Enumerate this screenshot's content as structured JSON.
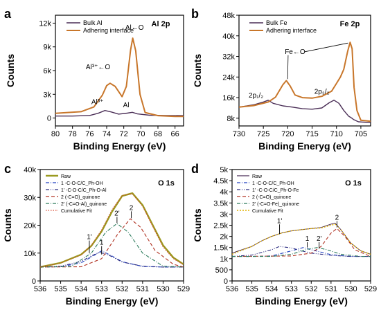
{
  "colors": {
    "bulk": "#4b2f57",
    "adhering": "#c8762a",
    "raw": "#4b2f57",
    "fit": "#e2b200",
    "c1": "#2040c0",
    "c1p": "#2c2c80",
    "c2": "#b03020",
    "c2p": "#2a7a5a",
    "cum": "#d8432a",
    "env": "#9a9a20"
  },
  "chart_data": [
    {
      "panel": "a",
      "type": "line",
      "title": "Al 2p",
      "xlabel": "Binding Energy (eV)",
      "ylabel": "Counts",
      "xlim": [
        80,
        65
      ],
      "ylim": [
        -1000,
        13000
      ],
      "xticks": [
        80,
        78,
        76,
        74,
        72,
        70,
        68,
        66
      ],
      "yticks": [
        0,
        3000,
        6000,
        9000,
        12000
      ],
      "ytick_labels": [
        "0",
        "3k",
        "6k",
        "9k",
        "12k"
      ],
      "legend": [
        "Bulk Al",
        "Adhering interface"
      ],
      "annotations": [
        "Al³⁺←O",
        "Al³⁺",
        "Al",
        "Al←O"
      ],
      "series": [
        {
          "name": "Bulk Al",
          "x": [
            80,
            78,
            76,
            75,
            74.2,
            73.5,
            72.6,
            71.6,
            71.0,
            70.4,
            69,
            67,
            65
          ],
          "y": [
            250,
            250,
            320,
            600,
            950,
            780,
            500,
            620,
            720,
            520,
            360,
            320,
            300
          ]
        },
        {
          "name": "Adhering interface",
          "x": [
            80,
            77,
            75.5,
            74.5,
            74.0,
            73.6,
            73.0,
            72.2,
            71.7,
            71.2,
            70.95,
            70.6,
            70.1,
            69.5,
            68,
            66,
            65
          ],
          "y": [
            600,
            800,
            1400,
            2900,
            4100,
            4400,
            4000,
            2700,
            4000,
            8600,
            10100,
            8500,
            3000,
            700,
            300,
            200,
            200
          ]
        }
      ]
    },
    {
      "panel": "b",
      "type": "line",
      "title": "Fe 2p",
      "xlabel": "Binding Eneryg (eV)",
      "ylabel": "Counts",
      "xlim": [
        730,
        703
      ],
      "ylim": [
        5000,
        48000
      ],
      "xticks": [
        730,
        725,
        720,
        715,
        710,
        705
      ],
      "yticks": [
        8000,
        16000,
        24000,
        32000,
        40000,
        48000
      ],
      "ytick_labels": [
        "8k",
        "16k",
        "24k",
        "32k",
        "40k",
        "48k"
      ],
      "legend": [
        "Bulk Fe",
        "Adhering interface"
      ],
      "annotations": [
        "Fe←O",
        "2p₁/₂",
        "2p₃/₂"
      ],
      "series": [
        {
          "name": "Bulk Fe",
          "x": [
            730,
            727,
            725,
            724,
            723,
            721,
            719,
            717,
            715,
            713,
            711.5,
            710.5,
            709.5,
            708.5,
            707.5,
            707.0,
            706.5,
            705.5,
            703
          ],
          "y": [
            12300,
            13200,
            14300,
            15000,
            13800,
            12800,
            12300,
            11700,
            11500,
            12000,
            14000,
            15000,
            13800,
            11000,
            8800,
            8200,
            7500,
            6600,
            6300
          ]
        },
        {
          "name": "Adhering interface",
          "x": [
            730,
            727,
            724,
            722.5,
            721,
            720.3,
            719.5,
            718.5,
            717,
            715,
            713,
            711,
            710,
            709.2,
            708.5,
            707.7,
            707.2,
            706.8,
            706.4,
            705.8,
            705.0,
            703
          ],
          "y": [
            12300,
            12900,
            14300,
            16200,
            21000,
            22600,
            20500,
            17000,
            16000,
            15800,
            16500,
            18500,
            21500,
            24000,
            27000,
            34000,
            37500,
            35000,
            20000,
            11000,
            7200,
            6800
          ]
        }
      ]
    },
    {
      "panel": "c",
      "type": "line",
      "title": "O 1s",
      "xlabel": "Binding Energy (eV)",
      "ylabel": "Counts",
      "xlim": [
        536,
        529
      ],
      "ylim": [
        0,
        40000
      ],
      "xticks": [
        536,
        535,
        534,
        533,
        532,
        531,
        530,
        529
      ],
      "yticks": [
        0,
        10000,
        20000,
        30000,
        40000
      ],
      "ytick_labels": [
        "0",
        "10k",
        "20k",
        "30k",
        "40k"
      ],
      "legend": [
        "Raw",
        "1 -C-O-C/C_Ph-OH",
        "1' -C-O-C/C_Ph-O-Al",
        "2 (-C=O)_quinone",
        "2' (-C=O-Al)_quinone",
        "Cumulative Fit"
      ],
      "annotations": [
        "1'",
        "1",
        "2'",
        "2"
      ],
      "series": [
        {
          "name": "Raw",
          "x": [
            536,
            535,
            534,
            533.5,
            533,
            532.5,
            532,
            531.5,
            531,
            530.5,
            530,
            529.5,
            529
          ],
          "y": [
            5000,
            6500,
            9500,
            12600,
            17800,
            24800,
            30500,
            31500,
            27200,
            20000,
            12800,
            8400,
            6000
          ]
        },
        {
          "name": "1 -C-O-C/C_Ph-OH",
          "x": [
            536,
            535,
            534,
            533.5,
            533,
            532.5,
            532,
            531,
            530,
            529
          ],
          "y": [
            5000,
            5100,
            6500,
            8600,
            10800,
            9000,
            6900,
            5200,
            5000,
            5000
          ]
        },
        {
          "name": "1' -C-O-C/C_Ph-O-Al",
          "x": [
            536,
            535,
            534,
            533.5,
            533.1,
            532.6,
            532,
            531,
            530,
            529
          ],
          "y": [
            5000,
            5300,
            7000,
            9000,
            10300,
            9100,
            6800,
            5300,
            5000,
            5000
          ]
        },
        {
          "name": "2 (-C=O)_quinone",
          "x": [
            536,
            534,
            533,
            532.2,
            531.6,
            531.1,
            530.4,
            529.5,
            529
          ],
          "y": [
            5000,
            5100,
            8000,
            17000,
            22300,
            19300,
            11000,
            6000,
            5000
          ]
        },
        {
          "name": "2' (-C=O-Al)_quinone",
          "x": [
            536,
            534.5,
            533.5,
            532.8,
            532.25,
            531.7,
            531,
            530,
            529
          ],
          "y": [
            5000,
            5200,
            10000,
            17500,
            20600,
            17500,
            10000,
            5300,
            5000
          ]
        },
        {
          "name": "Cumulative Fit",
          "x": [
            536,
            535,
            534,
            533.5,
            533,
            532.5,
            532,
            531.5,
            531,
            530.5,
            530,
            529.5,
            529
          ],
          "y": [
            5000,
            6400,
            9300,
            12800,
            18300,
            25500,
            30700,
            31300,
            26800,
            19500,
            12200,
            8000,
            5800
          ]
        }
      ]
    },
    {
      "panel": "d",
      "type": "line",
      "title": "O 1s",
      "xlabel": "Binding Energy (eV)",
      "ylabel": "Counts",
      "xlim": [
        536,
        529
      ],
      "ylim": [
        0,
        5000
      ],
      "xticks": [
        536,
        535,
        534,
        533,
        532,
        531,
        530,
        529
      ],
      "yticks": [
        0,
        500,
        1000,
        1500,
        2000,
        2500,
        3000,
        3500,
        4000,
        4500,
        5000
      ],
      "ytick_labels": [
        "0",
        "500",
        "1k",
        "1.5k",
        "2k",
        "2.5k",
        "3k",
        "3.5k",
        "4k",
        "4.5k",
        "5k"
      ],
      "legend": [
        "Raw",
        "1 -C-O-C/C_Ph-OH",
        "1' -C-O-C/C_Ph-O-Fe",
        "2 (-C=O)_quinone",
        "2' (-C=O-Fe)_quinone",
        "Cumulative Fit"
      ],
      "annotations": [
        "1'",
        "1",
        "2'",
        "2"
      ],
      "series": [
        {
          "name": "Raw",
          "x": [
            536,
            535.5,
            535,
            534.5,
            534,
            533.5,
            533,
            532.5,
            532,
            531.5,
            531,
            530.8,
            530.5,
            530,
            529.5,
            529
          ],
          "y": [
            1250,
            1400,
            1550,
            1800,
            2000,
            2150,
            2250,
            2300,
            2350,
            2400,
            2550,
            2600,
            2300,
            1700,
            1350,
            1200
          ]
        },
        {
          "name": "1 -C-O-C/C_Ph-OH",
          "x": [
            536,
            535,
            534,
            533,
            532.4,
            532,
            531,
            530,
            529
          ],
          "y": [
            1100,
            1100,
            1120,
            1350,
            1500,
            1400,
            1180,
            1100,
            1100
          ]
        },
        {
          "name": "1' -C-O-C/C_Ph-O-Fe",
          "x": [
            536,
            535,
            534,
            533.6,
            533,
            532.5,
            532,
            531,
            530,
            529
          ],
          "y": [
            1100,
            1160,
            1400,
            1550,
            1480,
            1350,
            1250,
            1150,
            1100,
            1100
          ]
        },
        {
          "name": "2 (-C=O)_quinone",
          "x": [
            536,
            533,
            532,
            531.5,
            531,
            530.7,
            530.3,
            529.8,
            529
          ],
          "y": [
            1100,
            1120,
            1250,
            1550,
            2150,
            2350,
            2000,
            1400,
            1100
          ]
        },
        {
          "name": "2' (-C=O-Fe)_quinone",
          "x": [
            536,
            534,
            533,
            532.2,
            531.7,
            531.2,
            530.5,
            529.5,
            529
          ],
          "y": [
            1100,
            1100,
            1200,
            1420,
            1500,
            1400,
            1200,
            1100,
            1100
          ]
        },
        {
          "name": "Cumulative Fit",
          "x": [
            536,
            535.5,
            535,
            534.5,
            534,
            533.5,
            533,
            532.5,
            532,
            531.5,
            531,
            530.8,
            530.5,
            530,
            529.5,
            529
          ],
          "y": [
            1200,
            1380,
            1550,
            1800,
            2000,
            2150,
            2250,
            2300,
            2350,
            2380,
            2500,
            2550,
            2300,
            1700,
            1350,
            1200
          ]
        }
      ]
    }
  ]
}
